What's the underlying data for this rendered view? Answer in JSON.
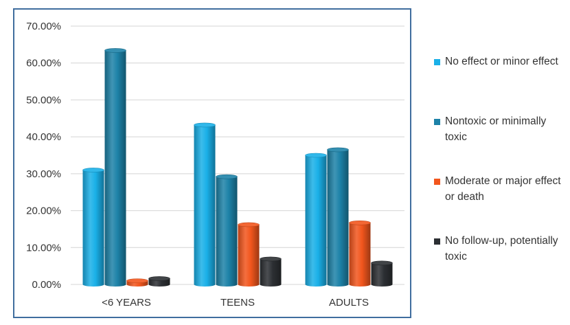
{
  "chart_data": {
    "type": "bar",
    "categories": [
      "<6 YEARS",
      "TEENS",
      "ADULTS"
    ],
    "series": [
      {
        "name": "No effect or minor effect",
        "color": "#1ab0e8",
        "values": [
          31.0,
          43.2,
          35.0
        ]
      },
      {
        "name": "Nontoxic or minimally toxic",
        "color": "#1d82a8",
        "values": [
          63.4,
          29.2,
          36.5
        ]
      },
      {
        "name": "Moderate or major effect or death",
        "color": "#f2561d",
        "values": [
          1.0,
          16.2,
          16.7
        ]
      },
      {
        "name": "No follow-up, potentially toxic",
        "color": "#2c2f33",
        "values": [
          1.6,
          6.9,
          5.8
        ]
      }
    ],
    "y_ticks": [
      "0.00%",
      "10.00%",
      "20.00%",
      "30.00%",
      "40.00%",
      "50.00%",
      "60.00%",
      "70.00%"
    ],
    "ylim": [
      0,
      70
    ],
    "grid": true,
    "legend_position": "right",
    "title": "",
    "xlabel": "",
    "ylabel": ""
  }
}
